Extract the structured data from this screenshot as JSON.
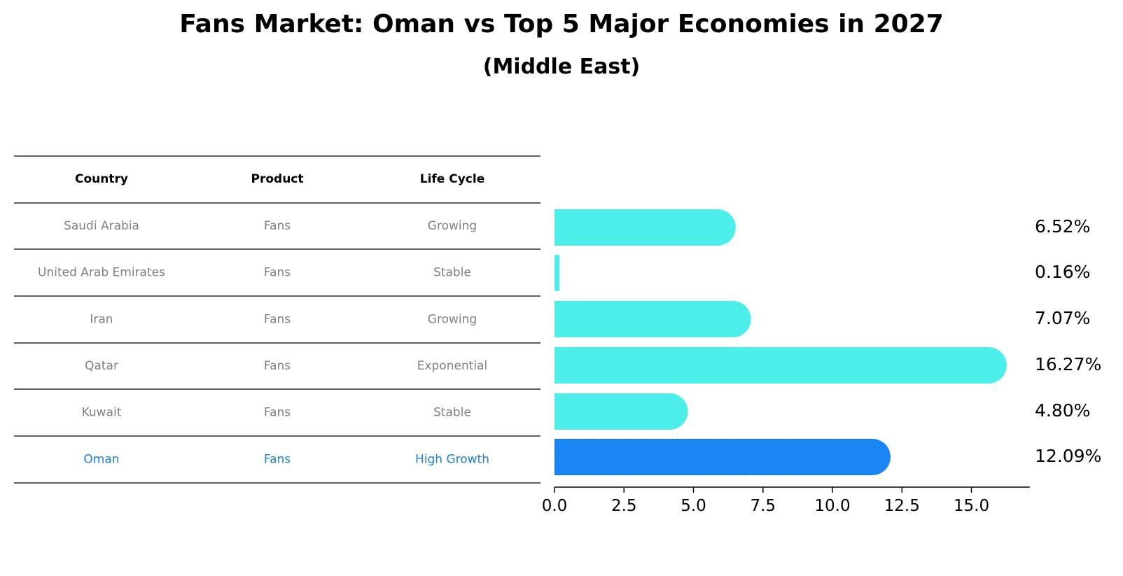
{
  "title": "Fans Market: Oman vs Top 5 Major Economies in 2027",
  "subtitle": "(Middle East)",
  "table": {
    "headers": [
      "Country",
      "Product",
      "Life Cycle"
    ],
    "rows": [
      {
        "country": "Saudi Arabia",
        "product": "Fans",
        "life_cycle": "Growing"
      },
      {
        "country": "United Arab Emirates",
        "product": "Fans",
        "life_cycle": "Stable"
      },
      {
        "country": "Iran",
        "product": "Fans",
        "life_cycle": "Growing"
      },
      {
        "country": "Qatar",
        "product": "Fans",
        "life_cycle": "Exponential"
      },
      {
        "country": "Kuwait",
        "product": "Fans",
        "life_cycle": "Stable"
      },
      {
        "country": "Oman",
        "product": "Fans",
        "life_cycle": "High Growth"
      }
    ],
    "highlight_row": 5
  },
  "colors": {
    "bar": "#4deeea",
    "highlight": "#1a85f5",
    "table_text": "#808080",
    "highlight_text": "#1f7fd0"
  },
  "chart_data": {
    "type": "bar",
    "orientation": "horizontal",
    "categories": [
      "Saudi Arabia",
      "United Arab Emirates",
      "Iran",
      "Qatar",
      "Kuwait",
      "Oman"
    ],
    "values": [
      6.52,
      0.16,
      7.07,
      16.27,
      4.8,
      12.09
    ],
    "value_labels": [
      "6.52%",
      "0.16%",
      "7.07%",
      "16.27%",
      "4.80%",
      "12.09%"
    ],
    "xlim": [
      0,
      17.1
    ],
    "xticks": [
      0.0,
      2.5,
      5.0,
      7.5,
      10.0,
      12.5,
      15.0
    ],
    "xtick_labels": [
      "0.0",
      "2.5",
      "5.0",
      "7.5",
      "10.0",
      "12.5",
      "15.0"
    ],
    "highlight": "Oman",
    "grid": false
  }
}
